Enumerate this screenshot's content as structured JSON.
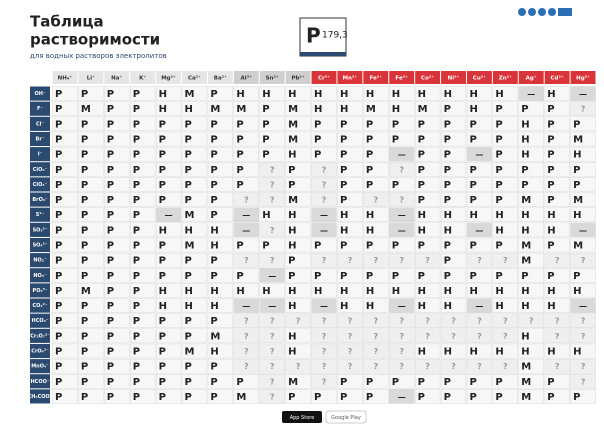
{
  "header": {
    "title": [
      "Таблица",
      "растворимости"
    ],
    "subtitle": "для водных растворов электролитов"
  },
  "legend": {
    "letter": "P",
    "value": "179,3"
  },
  "footer": {
    "app_store": "App Store",
    "google_play": "Google Play"
  },
  "table": {
    "cations": [
      "NH₄⁺",
      "Li⁺",
      "Na⁺",
      "K⁺",
      "Mg²⁺",
      "Ca²⁺",
      "Ba²⁺",
      "Al³⁺",
      "Sn²⁺",
      "Pb²⁺",
      "Cr³⁺",
      "Mn²⁺",
      "Fe²⁺",
      "Fe³⁺",
      "Co²⁺",
      "Ni²⁺",
      "Cu²⁺",
      "Zn²⁺",
      "Ag⁺",
      "Cd²⁺",
      "Hg²⁺"
    ],
    "anions": [
      "OH⁻",
      "F⁻",
      "Cl⁻",
      "Br⁻",
      "I⁻",
      "ClO₃⁻",
      "ClO₄⁻",
      "BrO₃⁻",
      "S²⁻",
      "SO₃²⁻",
      "SO₄²⁻",
      "NO₂⁻",
      "NO₃⁻",
      "PO₄³⁻",
      "CO₃²⁻",
      "HCO₃⁻",
      "Cr₂O₇²⁻",
      "CrO₄²⁻",
      "MnO₄⁻",
      "HCOO⁻",
      "CH₃COO⁻"
    ],
    "rows": [
      [
        "P",
        "P",
        "P",
        "P",
        "H",
        "M",
        "P",
        "H",
        "H",
        "H",
        "H",
        "H",
        "H",
        "H",
        "H",
        "H",
        "H",
        "H",
        "—",
        "H",
        "—"
      ],
      [
        "P",
        "M",
        "P",
        "P",
        "H",
        "H",
        "M",
        "M",
        "P",
        "M",
        "H",
        "H",
        "M",
        "H",
        "M",
        "P",
        "H",
        "P",
        "P",
        "P",
        "?"
      ],
      [
        "P",
        "P",
        "P",
        "P",
        "P",
        "P",
        "P",
        "P",
        "P",
        "M",
        "P",
        "P",
        "P",
        "P",
        "P",
        "P",
        "P",
        "P",
        "H",
        "P",
        "P"
      ],
      [
        "P",
        "P",
        "P",
        "P",
        "P",
        "P",
        "P",
        "P",
        "P",
        "M",
        "P",
        "P",
        "P",
        "P",
        "P",
        "P",
        "P",
        "P",
        "H",
        "P",
        "M"
      ],
      [
        "P",
        "P",
        "P",
        "P",
        "P",
        "P",
        "P",
        "P",
        "P",
        "H",
        "P",
        "P",
        "P",
        "—",
        "P",
        "P",
        "—",
        "P",
        "H",
        "P",
        "H"
      ],
      [
        "P",
        "P",
        "P",
        "P",
        "P",
        "P",
        "P",
        "P",
        "?",
        "P",
        "?",
        "P",
        "P",
        "?",
        "P",
        "P",
        "P",
        "P",
        "P",
        "P",
        "P"
      ],
      [
        "P",
        "P",
        "P",
        "P",
        "P",
        "P",
        "P",
        "P",
        "?",
        "P",
        "?",
        "P",
        "P",
        "P",
        "P",
        "P",
        "P",
        "P",
        "P",
        "P",
        "P"
      ],
      [
        "P",
        "P",
        "P",
        "P",
        "P",
        "P",
        "P",
        "?",
        "?",
        "M",
        "?",
        "P",
        "?",
        "?",
        "P",
        "P",
        "P",
        "P",
        "M",
        "P",
        "M"
      ],
      [
        "P",
        "P",
        "P",
        "P",
        "—",
        "M",
        "P",
        "—",
        "H",
        "H",
        "—",
        "H",
        "H",
        "—",
        "H",
        "H",
        "H",
        "H",
        "H",
        "H",
        "H"
      ],
      [
        "P",
        "P",
        "P",
        "P",
        "H",
        "H",
        "H",
        "—",
        "?",
        "H",
        "—",
        "H",
        "H",
        "—",
        "H",
        "H",
        "—",
        "H",
        "H",
        "H",
        "—"
      ],
      [
        "P",
        "P",
        "P",
        "P",
        "P",
        "M",
        "H",
        "P",
        "P",
        "H",
        "P",
        "P",
        "P",
        "P",
        "P",
        "P",
        "P",
        "P",
        "M",
        "P",
        "M"
      ],
      [
        "P",
        "P",
        "P",
        "P",
        "P",
        "P",
        "P",
        "?",
        "?",
        "P",
        "?",
        "?",
        "?",
        "?",
        "?",
        "P",
        "?",
        "?",
        "M",
        "?",
        "?"
      ],
      [
        "P",
        "P",
        "P",
        "P",
        "P",
        "P",
        "P",
        "P",
        "—",
        "P",
        "P",
        "P",
        "P",
        "P",
        "P",
        "P",
        "P",
        "P",
        "P",
        "P",
        "P"
      ],
      [
        "P",
        "M",
        "P",
        "P",
        "H",
        "H",
        "H",
        "H",
        "H",
        "H",
        "H",
        "H",
        "H",
        "H",
        "H",
        "H",
        "H",
        "H",
        "H",
        "H",
        "H"
      ],
      [
        "P",
        "P",
        "P",
        "P",
        "H",
        "H",
        "H",
        "—",
        "—",
        "H",
        "—",
        "H",
        "H",
        "—",
        "H",
        "H",
        "—",
        "H",
        "H",
        "H",
        "—"
      ],
      [
        "P",
        "P",
        "P",
        "P",
        "P",
        "P",
        "P",
        "?",
        "?",
        "?",
        "?",
        "?",
        "?",
        "?",
        "?",
        "?",
        "?",
        "?",
        "?",
        "?",
        "?"
      ],
      [
        "P",
        "P",
        "P",
        "P",
        "P",
        "P",
        "M",
        "?",
        "?",
        "H",
        "?",
        "?",
        "?",
        "?",
        "?",
        "?",
        "?",
        "?",
        "H",
        "?",
        "?"
      ],
      [
        "P",
        "P",
        "P",
        "P",
        "P",
        "M",
        "H",
        "?",
        "?",
        "H",
        "?",
        "?",
        "?",
        "?",
        "H",
        "H",
        "H",
        "H",
        "H",
        "H",
        "H"
      ],
      [
        "P",
        "P",
        "P",
        "P",
        "P",
        "P",
        "P",
        "?",
        "?",
        "?",
        "?",
        "?",
        "?",
        "?",
        "?",
        "?",
        "?",
        "?",
        "M",
        "?",
        "?"
      ],
      [
        "P",
        "P",
        "P",
        "P",
        "P",
        "P",
        "P",
        "P",
        "?",
        "M",
        "?",
        "P",
        "P",
        "P",
        "P",
        "P",
        "P",
        "P",
        "M",
        "P",
        "?"
      ],
      [
        "P",
        "P",
        "P",
        "P",
        "P",
        "P",
        "P",
        "M",
        "?",
        "P",
        "P",
        "P",
        "P",
        "—",
        "P",
        "P",
        "P",
        "P",
        "M",
        "P",
        "P"
      ]
    ]
  }
}
